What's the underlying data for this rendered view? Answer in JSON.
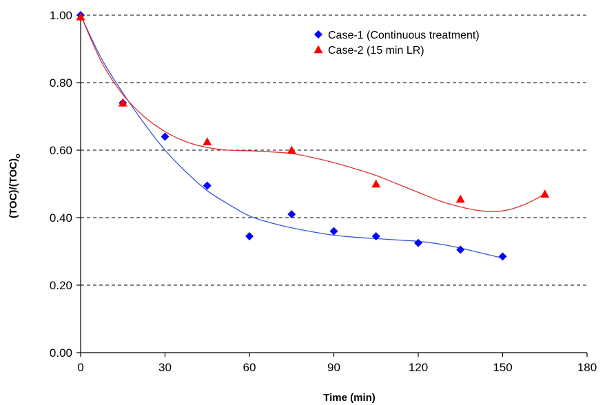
{
  "chart_data": {
    "type": "scatter",
    "xlabel": "Time (min)",
    "ylabel": "(TOC)/(TOC)",
    "ylabel_subscript": "o",
    "xlim": [
      0,
      180
    ],
    "ylim": [
      0,
      1
    ],
    "x_ticks": [
      0,
      30,
      60,
      90,
      120,
      150,
      180
    ],
    "x_tick_labels": [
      "0",
      "30",
      "60",
      "90",
      "120",
      "150",
      "180"
    ],
    "y_ticks": [
      0,
      0.2,
      0.4,
      0.6,
      0.8,
      1.0
    ],
    "y_tick_labels": [
      "0.00",
      "0.20",
      "0.40",
      "0.60",
      "0.80",
      "1.00"
    ],
    "grid": "horizontal dashed",
    "legend_position": "top-right",
    "series": [
      {
        "name": "Case-1 (Continuous treatment)",
        "marker": "diamond",
        "color": "#0000FF",
        "trend_color": "#3355DD",
        "x": [
          0,
          15,
          30,
          45,
          60,
          75,
          90,
          105,
          120,
          135,
          150
        ],
        "y": [
          1.0,
          0.74,
          0.64,
          0.495,
          0.345,
          0.41,
          0.36,
          0.345,
          0.325,
          0.305,
          0.285
        ],
        "trend_x": [
          0,
          7.5,
          15,
          22.5,
          30,
          37.5,
          45,
          52.5,
          60,
          67.5,
          75,
          82.5,
          90,
          97.5,
          105,
          112.5,
          120,
          127.5,
          135,
          142.5,
          150
        ],
        "trend_y": [
          1.0,
          0.87,
          0.77,
          0.68,
          0.6,
          0.535,
          0.48,
          0.44,
          0.405,
          0.385,
          0.37,
          0.358,
          0.348,
          0.342,
          0.338,
          0.334,
          0.33,
          0.322,
          0.31,
          0.295,
          0.28
        ]
      },
      {
        "name": "Case-2 (15 min LR)",
        "marker": "triangle",
        "color": "#FF0000",
        "trend_color": "#E03030",
        "x": [
          0,
          15,
          45,
          75,
          105,
          135,
          165
        ],
        "y": [
          0.995,
          0.74,
          0.625,
          0.6,
          0.5,
          0.455,
          0.47
        ],
        "trend_x": [
          0,
          7.5,
          15,
          22.5,
          30,
          37.5,
          45,
          52.5,
          60,
          67.5,
          75,
          82.5,
          90,
          97.5,
          105,
          112.5,
          120,
          127.5,
          135,
          142.5,
          150,
          157.5,
          165
        ],
        "trend_y": [
          1.0,
          0.86,
          0.765,
          0.7,
          0.655,
          0.625,
          0.608,
          0.6,
          0.598,
          0.595,
          0.59,
          0.578,
          0.563,
          0.545,
          0.525,
          0.5,
          0.475,
          0.45,
          0.432,
          0.42,
          0.42,
          0.438,
          0.47
        ]
      }
    ]
  }
}
